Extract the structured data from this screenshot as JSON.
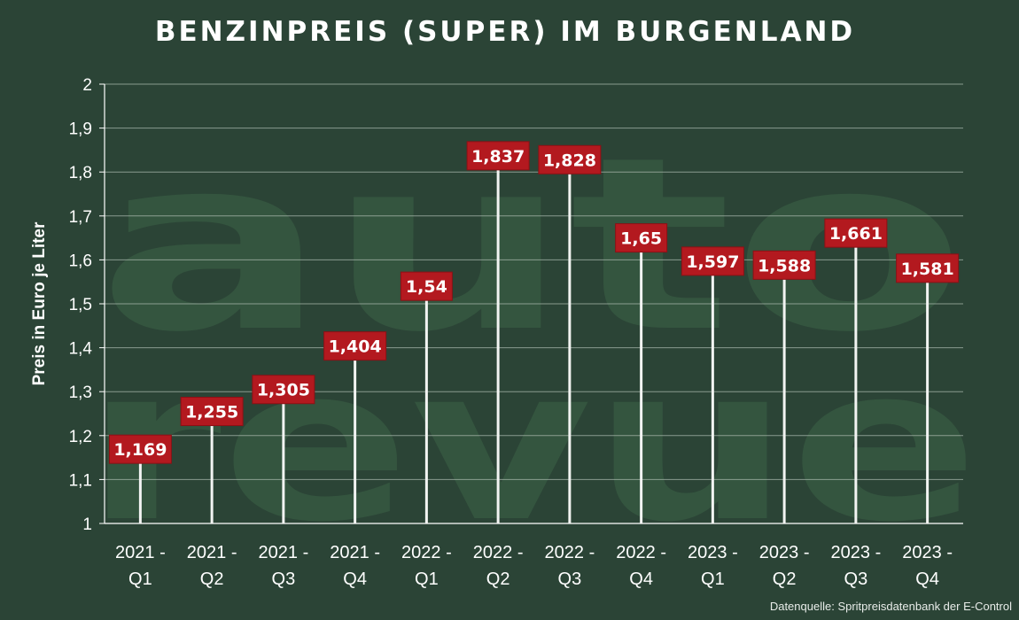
{
  "source_note": "Datenquelle: Spritpreisdatenbank der E-Control",
  "watermark": {
    "line1": "auto",
    "line2": "revue"
  },
  "colors": {
    "background": "#2b4436",
    "label_box": "#b3191f",
    "label_text": "#ffffff",
    "grid": "#a9b8ad",
    "axis": "#ffffff"
  },
  "chart_data": {
    "type": "bar",
    "title": "BENZINPREIS (SUPER) IM BURGENLAND",
    "xlabel": "",
    "ylabel": "Preis in Euro je Liter",
    "ylim": [
      1,
      2
    ],
    "grid": true,
    "yticks": [
      "1",
      "1,1",
      "1,2",
      "1,3",
      "1,4",
      "1,5",
      "1,6",
      "1,7",
      "1,8",
      "1,9",
      "2"
    ],
    "categories": [
      [
        "2021 -",
        "Q1"
      ],
      [
        "2021 -",
        "Q2"
      ],
      [
        "2021 -",
        "Q3"
      ],
      [
        "2021 -",
        "Q4"
      ],
      [
        "2022 -",
        "Q1"
      ],
      [
        "2022 -",
        "Q2"
      ],
      [
        "2022 -",
        "Q3"
      ],
      [
        "2022 -",
        "Q4"
      ],
      [
        "2023 -",
        "Q1"
      ],
      [
        "2023 -",
        "Q2"
      ],
      [
        "2023 -",
        "Q3"
      ],
      [
        "2023 -",
        "Q4"
      ]
    ],
    "values": [
      1.169,
      1.255,
      1.305,
      1.404,
      1.54,
      1.837,
      1.828,
      1.65,
      1.597,
      1.588,
      1.661,
      1.581
    ],
    "data_labels": [
      "1,169",
      "1,255",
      "1,305",
      "1,404",
      "1,54",
      "1,837",
      "1,828",
      "1,65",
      "1,597",
      "1,588",
      "1,661",
      "1,581"
    ]
  }
}
